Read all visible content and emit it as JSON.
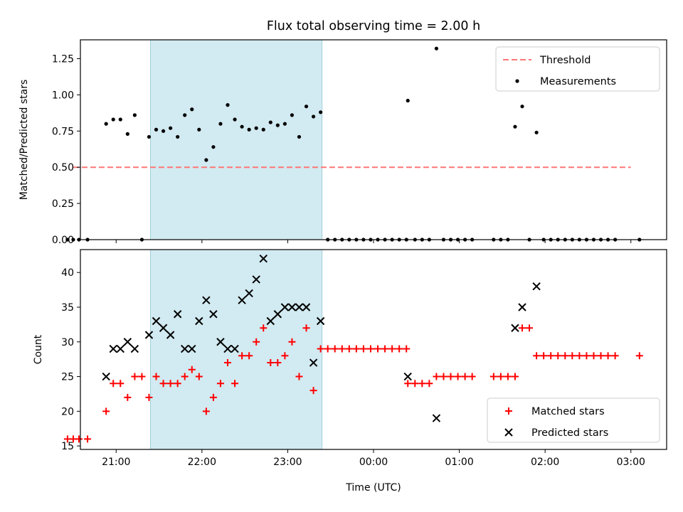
{
  "chart_data": [
    {
      "type": "scatter",
      "title": "Flux total observing time = 2.00 h",
      "xlabel": "",
      "ylabel": "Matched/Predicted stars",
      "x_unit": "time (UTC)",
      "xlim": [
        "20:35",
        "03:25"
      ],
      "ylim": [
        0,
        1.38
      ],
      "yticks": [
        "0.00",
        "0.25",
        "0.50",
        "0.75",
        "1.00",
        "1.25"
      ],
      "xticks": [
        "21:00",
        "22:00",
        "23:00",
        "00:00",
        "01:00",
        "02:00",
        "03:00"
      ],
      "shaded_region": {
        "x": [
          "21:24",
          "23:24"
        ],
        "color": "#add8e6"
      },
      "legend": {
        "position": "upper right",
        "entries": [
          "Threshold",
          "Measurements"
        ]
      },
      "series": [
        {
          "name": "Threshold",
          "style": "dashed line",
          "color": "#ff7777",
          "x": [
            "20:30",
            "03:00"
          ],
          "y": [
            0.5,
            0.5
          ]
        },
        {
          "name": "Measurements",
          "style": "dots",
          "color": "#000000",
          "points": [
            [
              "20:26",
              0
            ],
            [
              "20:30",
              0
            ],
            [
              "20:34",
              0
            ],
            [
              "20:40",
              0
            ],
            [
              "20:53",
              0.8
            ],
            [
              "20:58",
              0.83
            ],
            [
              "21:03",
              0.83
            ],
            [
              "21:08",
              0.73
            ],
            [
              "21:13",
              0.86
            ],
            [
              "21:18",
              0
            ],
            [
              "21:23",
              0.71
            ],
            [
              "21:28",
              0.76
            ],
            [
              "21:33",
              0.75
            ],
            [
              "21:38",
              0.77
            ],
            [
              "21:43",
              0.71
            ],
            [
              "21:48",
              0.86
            ],
            [
              "21:53",
              0.9
            ],
            [
              "21:58",
              0.76
            ],
            [
              "22:03",
              0.55
            ],
            [
              "22:08",
              0.64
            ],
            [
              "22:13",
              0.8
            ],
            [
              "22:18",
              0.93
            ],
            [
              "22:23",
              0.83
            ],
            [
              "22:28",
              0.78
            ],
            [
              "22:33",
              0.76
            ],
            [
              "22:38",
              0.77
            ],
            [
              "22:43",
              0.76
            ],
            [
              "22:48",
              0.81
            ],
            [
              "22:53",
              0.79
            ],
            [
              "22:58",
              0.8
            ],
            [
              "23:03",
              0.86
            ],
            [
              "23:08",
              0.71
            ],
            [
              "23:13",
              0.92
            ],
            [
              "23:18",
              0.85
            ],
            [
              "23:23",
              0.88
            ],
            [
              "23:28",
              0
            ],
            [
              "23:33",
              0
            ],
            [
              "23:38",
              0
            ],
            [
              "23:43",
              0
            ],
            [
              "23:48",
              0
            ],
            [
              "23:53",
              0
            ],
            [
              "23:58",
              0
            ],
            [
              "00:03",
              0
            ],
            [
              "00:08",
              0
            ],
            [
              "00:13",
              0
            ],
            [
              "00:18",
              0
            ],
            [
              "00:23",
              0
            ],
            [
              "00:24",
              0.96
            ],
            [
              "00:29",
              0
            ],
            [
              "00:34",
              0
            ],
            [
              "00:39",
              0
            ],
            [
              "00:44",
              1.32
            ],
            [
              "00:49",
              0
            ],
            [
              "00:54",
              0
            ],
            [
              "00:59",
              0
            ],
            [
              "01:04",
              0
            ],
            [
              "01:09",
              0
            ],
            [
              "01:24",
              0
            ],
            [
              "01:29",
              0
            ],
            [
              "01:34",
              0
            ],
            [
              "01:39",
              0.78
            ],
            [
              "01:44",
              0.92
            ],
            [
              "01:49",
              0
            ],
            [
              "01:54",
              0.74
            ],
            [
              "01:59",
              0
            ],
            [
              "02:04",
              0
            ],
            [
              "02:09",
              0
            ],
            [
              "02:14",
              0
            ],
            [
              "02:19",
              0
            ],
            [
              "02:24",
              0
            ],
            [
              "02:29",
              0
            ],
            [
              "02:34",
              0
            ],
            [
              "02:39",
              0
            ],
            [
              "02:44",
              0
            ],
            [
              "02:49",
              0
            ],
            [
              "03:06",
              0
            ]
          ]
        }
      ]
    },
    {
      "type": "scatter",
      "title": "",
      "xlabel": "Time (UTC)",
      "ylabel": "Count",
      "xlim": [
        "20:35",
        "03:25"
      ],
      "ylim": [
        14.5,
        43.3
      ],
      "yticks": [
        "15",
        "20",
        "25",
        "30",
        "35",
        "40"
      ],
      "xticks": [
        "21:00",
        "22:00",
        "23:00",
        "00:00",
        "01:00",
        "02:00",
        "03:00"
      ],
      "shaded_region": {
        "x": [
          "21:24",
          "23:24"
        ],
        "color": "#add8e6"
      },
      "legend": {
        "position": "lower right",
        "entries": [
          "Matched stars",
          "Predicted stars"
        ]
      },
      "series": [
        {
          "name": "Matched stars",
          "marker": "plus",
          "color": "#ff0000",
          "points": [
            [
              "20:26",
              16
            ],
            [
              "20:30",
              16
            ],
            [
              "20:34",
              16
            ],
            [
              "20:40",
              16
            ],
            [
              "20:53",
              20
            ],
            [
              "20:58",
              24
            ],
            [
              "21:03",
              24
            ],
            [
              "21:08",
              22
            ],
            [
              "21:13",
              25
            ],
            [
              "21:18",
              25
            ],
            [
              "21:23",
              22
            ],
            [
              "21:28",
              25
            ],
            [
              "21:33",
              24
            ],
            [
              "21:38",
              24
            ],
            [
              "21:43",
              24
            ],
            [
              "21:48",
              25
            ],
            [
              "21:53",
              26
            ],
            [
              "21:58",
              25
            ],
            [
              "22:03",
              20
            ],
            [
              "22:08",
              22
            ],
            [
              "22:13",
              24
            ],
            [
              "22:18",
              27
            ],
            [
              "22:23",
              24
            ],
            [
              "22:28",
              28
            ],
            [
              "22:33",
              28
            ],
            [
              "22:38",
              30
            ],
            [
              "22:43",
              32
            ],
            [
              "22:48",
              27
            ],
            [
              "22:53",
              27
            ],
            [
              "22:58",
              28
            ],
            [
              "23:03",
              30
            ],
            [
              "23:08",
              25
            ],
            [
              "23:13",
              32
            ],
            [
              "23:18",
              23
            ],
            [
              "23:23",
              29
            ],
            [
              "23:28",
              29
            ],
            [
              "23:33",
              29
            ],
            [
              "23:38",
              29
            ],
            [
              "23:43",
              29
            ],
            [
              "23:48",
              29
            ],
            [
              "23:53",
              29
            ],
            [
              "23:58",
              29
            ],
            [
              "00:03",
              29
            ],
            [
              "00:08",
              29
            ],
            [
              "00:13",
              29
            ],
            [
              "00:18",
              29
            ],
            [
              "00:23",
              29
            ],
            [
              "00:24",
              24
            ],
            [
              "00:29",
              24
            ],
            [
              "00:34",
              24
            ],
            [
              "00:39",
              24
            ],
            [
              "00:44",
              25
            ],
            [
              "00:49",
              25
            ],
            [
              "00:54",
              25
            ],
            [
              "00:59",
              25
            ],
            [
              "01:04",
              25
            ],
            [
              "01:09",
              25
            ],
            [
              "01:24",
              25
            ],
            [
              "01:29",
              25
            ],
            [
              "01:34",
              25
            ],
            [
              "01:39",
              25
            ],
            [
              "01:44",
              32
            ],
            [
              "01:49",
              32
            ],
            [
              "01:54",
              28
            ],
            [
              "01:59",
              28
            ],
            [
              "02:04",
              28
            ],
            [
              "02:09",
              28
            ],
            [
              "02:14",
              28
            ],
            [
              "02:19",
              28
            ],
            [
              "02:24",
              28
            ],
            [
              "02:29",
              28
            ],
            [
              "02:34",
              28
            ],
            [
              "02:39",
              28
            ],
            [
              "02:44",
              28
            ],
            [
              "02:49",
              28
            ],
            [
              "03:06",
              28
            ]
          ]
        },
        {
          "name": "Predicted stars",
          "marker": "x",
          "color": "#000000",
          "points": [
            [
              "20:53",
              25
            ],
            [
              "20:58",
              29
            ],
            [
              "21:03",
              29
            ],
            [
              "21:08",
              30
            ],
            [
              "21:13",
              29
            ],
            [
              "21:23",
              31
            ],
            [
              "21:28",
              33
            ],
            [
              "21:33",
              32
            ],
            [
              "21:38",
              31
            ],
            [
              "21:43",
              34
            ],
            [
              "21:48",
              29
            ],
            [
              "21:53",
              29
            ],
            [
              "21:58",
              33
            ],
            [
              "22:03",
              36
            ],
            [
              "22:08",
              34
            ],
            [
              "22:13",
              30
            ],
            [
              "22:18",
              29
            ],
            [
              "22:23",
              29
            ],
            [
              "22:28",
              36
            ],
            [
              "22:33",
              37
            ],
            [
              "22:38",
              39
            ],
            [
              "22:43",
              42
            ],
            [
              "22:48",
              33
            ],
            [
              "22:53",
              34
            ],
            [
              "22:58",
              35
            ],
            [
              "23:03",
              35
            ],
            [
              "23:08",
              35
            ],
            [
              "23:13",
              35
            ],
            [
              "23:18",
              27
            ],
            [
              "23:23",
              33
            ],
            [
              "00:24",
              25
            ],
            [
              "00:44",
              19
            ],
            [
              "01:39",
              32
            ],
            [
              "01:44",
              35
            ],
            [
              "01:54",
              38
            ]
          ]
        }
      ]
    }
  ]
}
